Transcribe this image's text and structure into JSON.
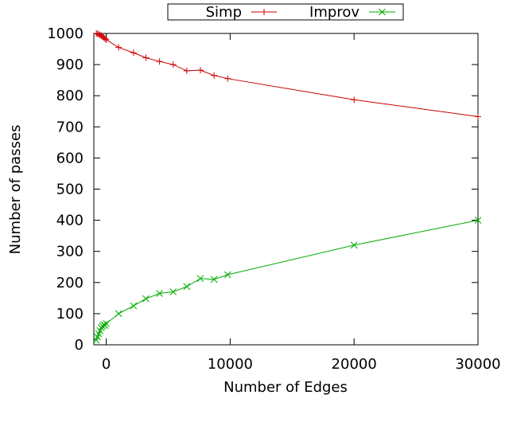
{
  "chart_data": {
    "type": "line",
    "title": "",
    "xlabel": "Number of Edges",
    "ylabel": "Number of passes",
    "xlim": [
      -1000,
      30000
    ],
    "ylim": [
      0,
      1000
    ],
    "xticks": [
      0,
      10000,
      20000,
      30000
    ],
    "xtick_labels": [
      "0",
      "10000",
      "20000",
      "30000"
    ],
    "yticks": [
      0,
      100,
      200,
      300,
      400,
      500,
      600,
      700,
      800,
      900,
      1000
    ],
    "ytick_labels": [
      "0",
      "100",
      "200",
      "300",
      "400",
      "500",
      "600",
      "700",
      "800",
      "900",
      "1000"
    ],
    "grid": false,
    "legend": "top-center",
    "series": [
      {
        "name": "Simp",
        "color": "#cc0000",
        "marker": "plus",
        "x": [
          -800,
          -700,
          -600,
          -500,
          -400,
          -300,
          -200,
          -100,
          0,
          1000,
          2200,
          3200,
          4300,
          5400,
          6500,
          7600,
          8700,
          9800,
          20000,
          30000
        ],
        "y": [
          1000,
          999,
          997,
          995,
          993,
          990,
          987,
          983,
          980,
          955,
          938,
          922,
          910,
          900,
          880,
          882,
          865,
          855,
          787,
          733
        ]
      },
      {
        "name": "Improv",
        "color": "#00aa00",
        "marker": "x",
        "x": [
          -800,
          -700,
          -600,
          -500,
          -400,
          -300,
          -200,
          -100,
          0,
          1000,
          2200,
          3200,
          4300,
          5400,
          6500,
          7600,
          8700,
          9800,
          20000,
          30000
        ],
        "y": [
          15,
          25,
          35,
          45,
          55,
          60,
          65,
          62,
          68,
          100,
          125,
          148,
          165,
          170,
          187,
          213,
          210,
          225,
          320,
          400
        ]
      }
    ]
  }
}
